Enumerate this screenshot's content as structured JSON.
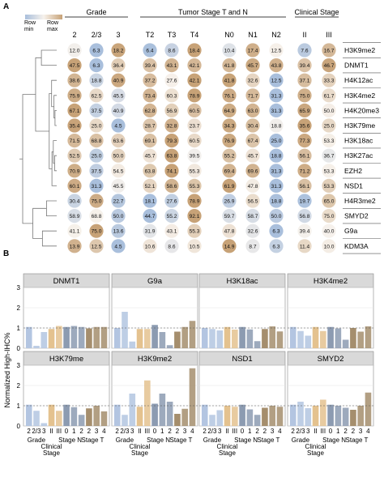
{
  "chart_data": [
    {
      "type": "heatmap",
      "panel_label": "A",
      "legend": {
        "min_label": [
          "Row",
          "min"
        ],
        "max_label": [
          "Row",
          "max"
        ]
      },
      "group_headers": [
        {
          "label": "Grade",
          "span": [
            0,
            2
          ]
        },
        {
          "label": "Tumor Stage T and N",
          "span": [
            3,
            8
          ]
        },
        {
          "label": "Clinical Stage",
          "span": [
            9,
            10
          ]
        }
      ],
      "columns": [
        "2",
        "2/3",
        "3",
        "T2",
        "T3",
        "T4",
        "N0",
        "N1",
        "N2",
        "II",
        "III"
      ],
      "rows": [
        "H3K9me2",
        "DNMT1",
        "H4K12ac",
        "H3K4me2",
        "H4K20me3",
        "H3K79me",
        "H3K18ac",
        "H3K27ac",
        "EZH2",
        "NSD1",
        "H4R3me2",
        "SMYD2",
        "G9a",
        "KDM3A"
      ],
      "values": [
        [
          12.0,
          6.3,
          18.2,
          6.4,
          8.6,
          18.4,
          10.4,
          17.4,
          12.5,
          7.6,
          16.7
        ],
        [
          47.5,
          6.3,
          36.4,
          39.4,
          43.1,
          42.1,
          41.8,
          45.7,
          43.8,
          39.4,
          46.7
        ],
        [
          38.6,
          18.8,
          40.9,
          37.2,
          27.6,
          42.1,
          41.8,
          32.6,
          12.5,
          37.1,
          33.3
        ],
        [
          75.9,
          62.5,
          45.5,
          73.4,
          60.3,
          78.9,
          76.1,
          71.7,
          31.3,
          75.0,
          61.7
        ],
        [
          67.1,
          37.5,
          40.9,
          62.8,
          56.9,
          60.5,
          64.9,
          63.0,
          31.3,
          65.9,
          50.0
        ],
        [
          35.4,
          25.0,
          4.5,
          28.7,
          32.8,
          23.7,
          34.3,
          30.4,
          18.8,
          35.6,
          25.0
        ],
        [
          71.5,
          68.8,
          63.6,
          69.1,
          79.3,
          60.5,
          76.9,
          67.4,
          25.0,
          77.3,
          53.3
        ],
        [
          52.5,
          25.0,
          50.0,
          45.7,
          63.8,
          39.5,
          55.2,
          45.7,
          18.8,
          56.1,
          36.7
        ],
        [
          70.9,
          37.5,
          54.5,
          63.8,
          74.1,
          55.3,
          69.4,
          69.6,
          31.3,
          71.2,
          53.3
        ],
        [
          60.1,
          31.3,
          45.5,
          52.1,
          58.6,
          55.3,
          61.9,
          47.8,
          31.3,
          56.1,
          53.3
        ],
        [
          30.4,
          75.0,
          22.7,
          18.1,
          27.6,
          78.9,
          26.9,
          56.5,
          18.8,
          19.7,
          65.0
        ],
        [
          58.9,
          68.8,
          50.0,
          44.7,
          55.2,
          92.1,
          59.7,
          58.7,
          50.0,
          56.8,
          75.0
        ],
        [
          41.1,
          75.0,
          13.6,
          31.9,
          43.1,
          55.3,
          47.8,
          32.6,
          6.3,
          39.4,
          40.0
        ],
        [
          13.9,
          12.5,
          4.5,
          10.6,
          8.6,
          10.5,
          14.9,
          8.7,
          6.3,
          11.4,
          10.0
        ]
      ],
      "display_values": [
        [
          "12.0",
          "6.3",
          "18.2",
          "6.4",
          "8.6",
          "18.4",
          "10.4",
          "17.4",
          "12.5",
          "7.6",
          "16.7"
        ],
        [
          "47.5",
          "6.3",
          "36.4",
          "39.4",
          "43.1",
          "42.1",
          "41.8",
          "45.7",
          "43.8",
          "39.4",
          "46.7"
        ],
        [
          "38.6",
          "18.8",
          "40.9",
          "37.2",
          "27.6",
          "42.1",
          "41.8",
          "32.6",
          "12.5",
          "37.1",
          "33.3"
        ],
        [
          "75.9",
          "62.5",
          "45.5",
          "73.4",
          "60.3",
          "78.9",
          "76.1",
          "71.7",
          "31.3",
          "75.0",
          "61.7"
        ],
        [
          "67.1",
          "37.5",
          "40.9",
          "62.8",
          "56.9",
          "60.5",
          "64.9",
          "63.0",
          "31.3",
          "65.9",
          "50.0"
        ],
        [
          "35.4",
          "25.0",
          "4.5",
          "28.7",
          "32.8",
          "23.7",
          "34.3",
          "30.4",
          "18.8",
          "35.6",
          "25.0"
        ],
        [
          "71.5",
          "68.8",
          "63.6",
          "69.1",
          "79.3",
          "60.5",
          "76.9",
          "67.4",
          "25.0",
          "77.3",
          "53.3"
        ],
        [
          "52.5",
          "25.0",
          "50.0",
          "45.7",
          "63.8",
          "39.5",
          "55.2",
          "45.7",
          "18.8",
          "56.1",
          "36.7"
        ],
        [
          "70.9",
          "37.5",
          "54.5",
          "63.8",
          "74.1",
          "55.3",
          "69.4",
          "69.6",
          "31.3",
          "71.2",
          "53.3"
        ],
        [
          "60.1",
          "31.3",
          "45.5",
          "52.1",
          "58.6",
          "55.3",
          "61.9",
          "47.8",
          "31.3",
          "56.1",
          "53.3"
        ],
        [
          "30.4",
          "75.0",
          "22.7",
          "18.1",
          "27.6",
          "78.9",
          "26.9",
          "56.5",
          "18.8",
          "19.7",
          "65.0"
        ],
        [
          "58.9",
          "68.8",
          "50.0",
          "44.7",
          "55.2",
          "92.1",
          "59.7",
          "58.7",
          "50.0",
          "56.8",
          "75.0"
        ],
        [
          "41.1",
          "75.0",
          "13.6",
          "31.9",
          "43.1",
          "55.3",
          "47.8",
          "32.6",
          "6.3",
          "39.4",
          "40.0"
        ],
        [
          "13.9",
          "12.5",
          "4.5",
          "10.6",
          "8.6",
          "10.5",
          "14.9",
          "8.7",
          "6.3",
          "11.4",
          "10.0"
        ]
      ],
      "color_scale": {
        "min": "#a9bfdc",
        "mid": "#f7f2ec",
        "max": "#c7a277",
        "scaling": "row"
      }
    },
    {
      "type": "bar",
      "panel_label": "B",
      "ylabel": "Normalized High-IHC%",
      "ylim": [
        0,
        3
      ],
      "yticks": [
        "0",
        "1",
        "2",
        "3"
      ],
      "categories": [
        "2",
        "2/3",
        "3",
        "II",
        "III",
        "0",
        "1",
        "2",
        "2",
        "3",
        "4"
      ],
      "group_labels": [
        "Grade",
        "Clinical Stage",
        "Stage N",
        "Stage T"
      ],
      "category_groups": [
        0,
        0,
        0,
        1,
        1,
        2,
        2,
        2,
        3,
        3,
        3
      ],
      "group_colors": [
        "#b3c5e1",
        "#e4c28f",
        "#8c9bb1",
        "#a58e6d"
      ],
      "panels": [
        {
          "name": "DNMT1",
          "values": [
            1.05,
            0.12,
            0.8,
            0.95,
            1.1,
            1.05,
            1.1,
            1.05,
            0.98,
            1.05,
            1.05
          ]
        },
        {
          "name": "G9a",
          "values": [
            1.0,
            1.8,
            0.33,
            0.95,
            0.95,
            1.15,
            0.8,
            0.15,
            0.82,
            1.05,
            1.35
          ]
        },
        {
          "name": "H3K18ac",
          "values": [
            1.0,
            0.95,
            0.88,
            1.05,
            0.92,
            1.05,
            0.93,
            0.35,
            0.95,
            1.08,
            0.83
          ]
        },
        {
          "name": "H3K4me2",
          "values": [
            1.05,
            0.85,
            0.62,
            1.05,
            0.85,
            1.05,
            0.98,
            0.42,
            1.0,
            0.82,
            1.08
          ]
        },
        {
          "name": "H3K79me",
          "values": [
            1.05,
            0.75,
            0.14,
            1.05,
            0.75,
            1.05,
            0.93,
            0.55,
            0.87,
            1.0,
            0.72
          ]
        },
        {
          "name": "H3K9me2",
          "values": [
            1.05,
            0.55,
            1.6,
            0.95,
            2.25,
            1.1,
            1.6,
            1.2,
            0.6,
            0.85,
            2.85
          ]
        },
        {
          "name": "NSD1",
          "values": [
            1.05,
            0.55,
            0.78,
            1.0,
            0.95,
            1.05,
            0.82,
            0.55,
            0.9,
            1.0,
            0.95
          ]
        },
        {
          "name": "SMYD2",
          "values": [
            1.05,
            1.2,
            0.88,
            1.0,
            1.3,
            1.05,
            1.0,
            0.9,
            0.8,
            1.0,
            1.65
          ]
        }
      ]
    }
  ]
}
